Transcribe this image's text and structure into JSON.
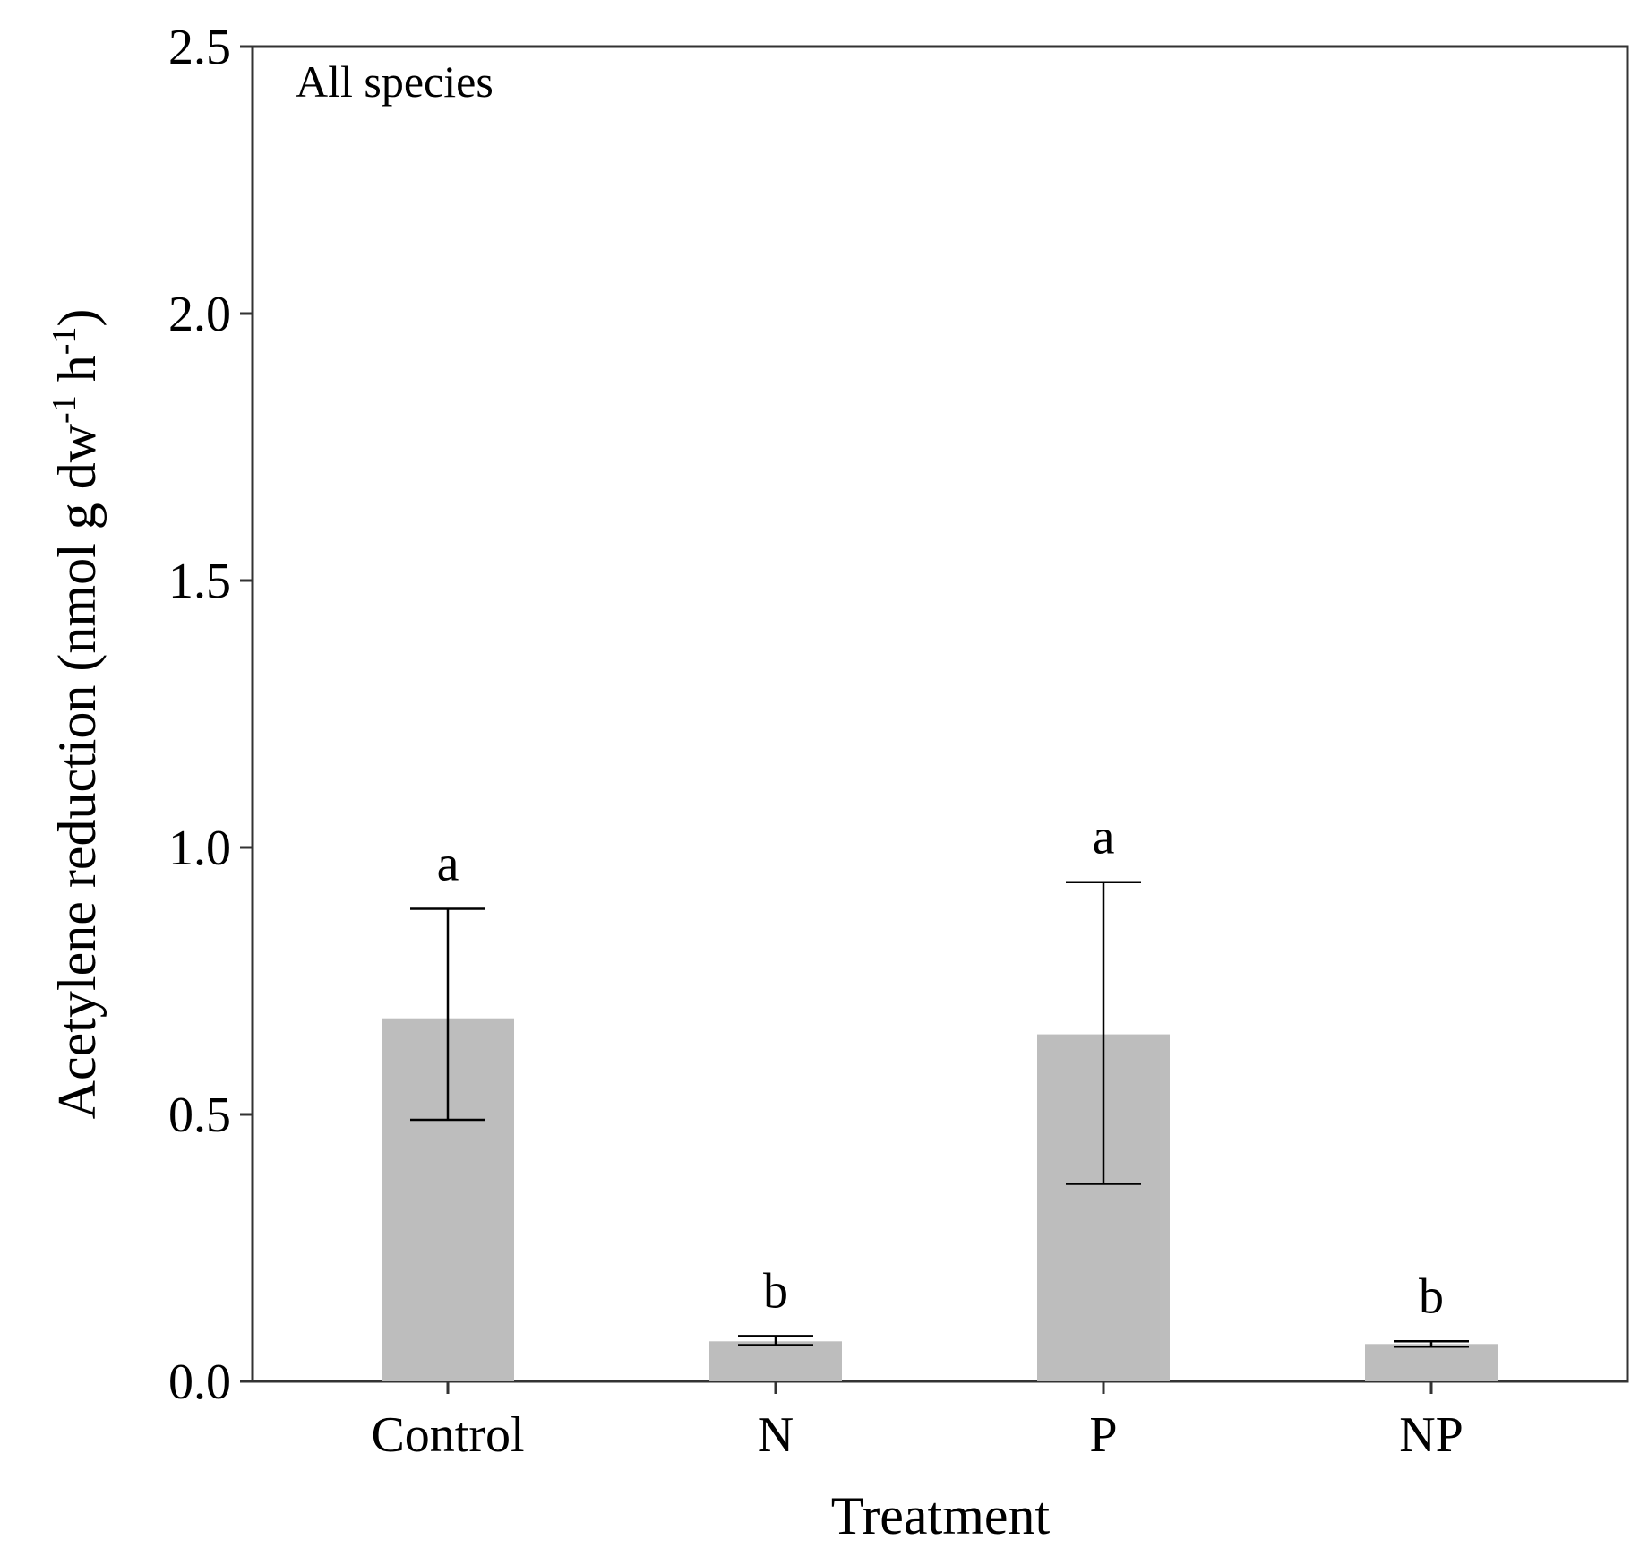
{
  "chart_data": {
    "type": "bar",
    "title": "",
    "annotation": "All species",
    "xlabel": "Treatment",
    "ylabel_main": "Acetylene reduction (nmol g dw",
    "ylabel_sup1": "-1",
    "ylabel_mid": " h",
    "ylabel_sup2": "-1",
    "ylabel_end": ")",
    "ylim": [
      0,
      2.5
    ],
    "yticks": [
      "0.0",
      "0.5",
      "1.0",
      "1.5",
      "2.0",
      "2.5"
    ],
    "categories": [
      "Control",
      "N",
      "P",
      "NP"
    ],
    "values": [
      0.68,
      0.075,
      0.65,
      0.07
    ],
    "error_low": [
      0.49,
      0.068,
      0.37,
      0.065
    ],
    "error_high": [
      0.885,
      0.085,
      0.935,
      0.075
    ],
    "significance": [
      "a",
      "b",
      "a",
      "b"
    ],
    "bar_color": "#bdbdbd",
    "error_color": "#000000",
    "axis_color": "#333333"
  }
}
